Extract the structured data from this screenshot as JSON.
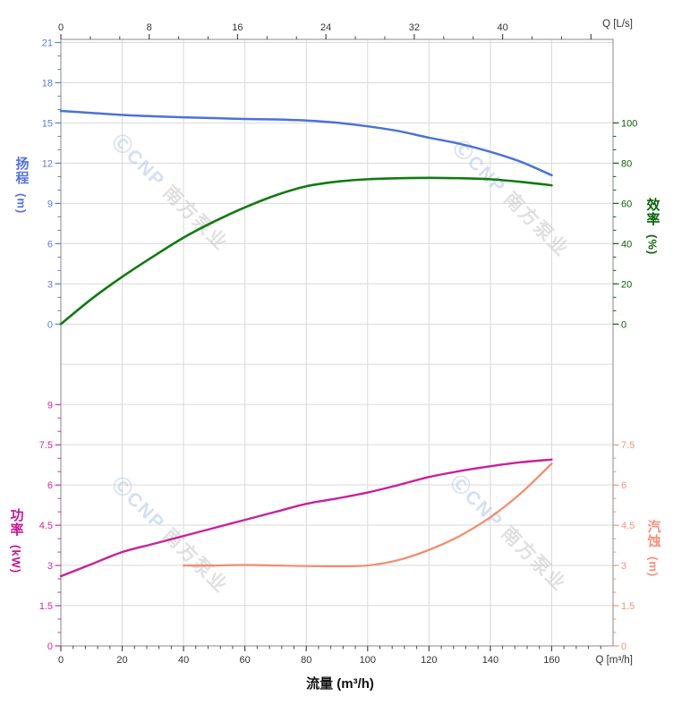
{
  "watermark": {
    "logo": "Ⓒ",
    "brand": "CNP",
    "suffix": "南方泵业",
    "blue": "#b2c5e8",
    "grey": "#c6c6c9"
  },
  "colors": {
    "grid": "#d9d9d9",
    "border": "#a3a3a3",
    "tick_dark": "#4a4a4a",
    "text_dark": "#333333",
    "head_curve": "#4a72d9",
    "head_label": "#5b7be0",
    "eff_curve": "#117a11",
    "eff_label": "#0a650a",
    "power_curve": "#c9219b",
    "power_label": "#d02ba2",
    "npsh_curve": "#f58a6d",
    "npsh_label": "#f5917e"
  },
  "chart_data": [
    {
      "type": "line",
      "x_axis": {
        "position": "top",
        "label": "Q [L/s]",
        "ticks": [
          0,
          8,
          16,
          24,
          32,
          40
        ],
        "range": [
          0,
          50
        ]
      },
      "axes": {
        "left": {
          "title": "扬程",
          "unit": "(m)",
          "color": "#5472de",
          "ticks": [
            21,
            18,
            15,
            12,
            9,
            6,
            3,
            0
          ],
          "range": [
            0,
            21.2
          ]
        },
        "right": {
          "title": "效率",
          "unit": "(%)",
          "color": "#0a650a",
          "ticks": [
            100,
            80,
            60,
            40,
            20,
            0
          ],
          "range": [
            0,
            140
          ]
        }
      },
      "series": [
        {
          "name": "扬程",
          "axis": "left",
          "color": "#4a72d9",
          "points": [
            [
              0,
              15.9
            ],
            [
              10,
              15.75
            ],
            [
              20,
              15.6
            ],
            [
              30,
              15.5
            ],
            [
              40,
              15.42
            ],
            [
              50,
              15.36
            ],
            [
              60,
              15.3
            ],
            [
              70,
              15.26
            ],
            [
              80,
              15.18
            ],
            [
              90,
              15.02
            ],
            [
              100,
              14.75
            ],
            [
              110,
              14.4
            ],
            [
              120,
              13.9
            ],
            [
              130,
              13.45
            ],
            [
              140,
              12.85
            ],
            [
              150,
              12.1
            ],
            [
              160,
              11.1
            ]
          ]
        },
        {
          "name": "效率",
          "axis": "right",
          "color": "#117a11",
          "points": [
            [
              0,
              0
            ],
            [
              10,
              12.5
            ],
            [
              20,
              23.5
            ],
            [
              30,
              33.5
            ],
            [
              40,
              43
            ],
            [
              50,
              51
            ],
            [
              60,
              58
            ],
            [
              70,
              64
            ],
            [
              80,
              68.5
            ],
            [
              90,
              70.8
            ],
            [
              100,
              72
            ],
            [
              110,
              72.5
            ],
            [
              120,
              72.7
            ],
            [
              130,
              72.5
            ],
            [
              140,
              72
            ],
            [
              150,
              70.7
            ],
            [
              160,
              69
            ]
          ]
        }
      ]
    },
    {
      "type": "line",
      "x_axis": {
        "position": "bottom",
        "label": "Q [m³/h]",
        "title": "流量 (m³/h)",
        "ticks": [
          0,
          20,
          40,
          60,
          80,
          100,
          120,
          140,
          160
        ],
        "range": [
          0,
          180
        ]
      },
      "axes": {
        "left": {
          "title": "功率",
          "unit": "(kW)",
          "color": "#c11a96",
          "ticks": [
            9,
            7.5,
            6,
            4.5,
            3,
            1.5,
            0
          ],
          "range": [
            0,
            12
          ]
        },
        "right": {
          "title": "汽蚀",
          "unit": "(m)",
          "color": "#f5907c",
          "ticks": [
            7.5,
            6,
            4.5,
            3,
            1.5,
            0
          ],
          "range": [
            0,
            12
          ]
        }
      },
      "series": [
        {
          "name": "功率",
          "axis": "left",
          "color": "#c9219b",
          "points": [
            [
              0,
              2.6
            ],
            [
              10,
              3.05
            ],
            [
              20,
              3.5
            ],
            [
              30,
              3.8
            ],
            [
              40,
              4.1
            ],
            [
              50,
              4.4
            ],
            [
              60,
              4.7
            ],
            [
              70,
              5.0
            ],
            [
              80,
              5.3
            ],
            [
              90,
              5.5
            ],
            [
              100,
              5.72
            ],
            [
              110,
              6.0
            ],
            [
              120,
              6.3
            ],
            [
              130,
              6.52
            ],
            [
              140,
              6.7
            ],
            [
              150,
              6.85
            ],
            [
              160,
              6.95
            ]
          ]
        },
        {
          "name": "汽蚀",
          "axis": "right",
          "color": "#f58a6d",
          "points": [
            [
              40,
              3.0
            ],
            [
              50,
              3.0
            ],
            [
              60,
              3.02
            ],
            [
              70,
              3.0
            ],
            [
              80,
              2.98
            ],
            [
              90,
              2.97
            ],
            [
              100,
              3.0
            ],
            [
              110,
              3.2
            ],
            [
              120,
              3.58
            ],
            [
              130,
              4.1
            ],
            [
              140,
              4.8
            ],
            [
              150,
              5.7
            ],
            [
              160,
              6.8
            ]
          ]
        }
      ]
    }
  ]
}
